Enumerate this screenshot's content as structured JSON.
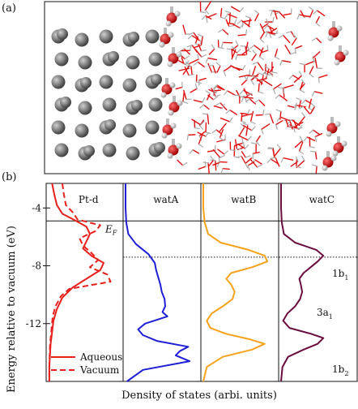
{
  "figure": {
    "panel_a_label": "(a)",
    "panel_b_label": "(b)",
    "ylabel": "Energy relative to vacuum (eV)",
    "xlabel": "Density of states (arbi. units)",
    "fermi_label": "E",
    "fermi_subscript": "F",
    "colors": {
      "aqueous": "#e8201c",
      "vacuum": "#e8201c",
      "watA": "#1f1fd6",
      "watB": "#f6a21a",
      "watC": "#6a0d3e",
      "pt": "#7a7a7a",
      "oxygen": "#e01010",
      "hydrogen": "#d8d8d8"
    }
  },
  "chart_data": {
    "type": "line",
    "ylabel": "Energy relative to vacuum (eV)",
    "xlabel": "Density of states (arbi. units)",
    "ylim": [
      -16,
      -2.3
    ],
    "yticks": [
      -4,
      -8,
      -12
    ],
    "ytick_labels": [
      "-4",
      "-8",
      "-12"
    ],
    "fermi_level": -4.9,
    "dotted_line": -7.4,
    "panels": [
      {
        "title": "Pt-d",
        "series": [
          {
            "name": "Aqueous",
            "style": "solid",
            "points": [
              [
                -2.3,
                0.05
              ],
              [
                -3.0,
                0.08
              ],
              [
                -3.8,
                0.12
              ],
              [
                -4.4,
                0.2
              ],
              [
                -4.9,
                0.4
              ],
              [
                -5.3,
                0.55
              ],
              [
                -5.8,
                0.6
              ],
              [
                -6.3,
                0.55
              ],
              [
                -6.8,
                0.5
              ],
              [
                -7.3,
                0.62
              ],
              [
                -7.8,
                0.8
              ],
              [
                -8.3,
                0.75
              ],
              [
                -8.9,
                0.55
              ],
              [
                -9.5,
                0.35
              ],
              [
                -10.2,
                0.2
              ],
              [
                -11.0,
                0.12
              ],
              [
                -11.8,
                0.07
              ],
              [
                -12.6,
                0.05
              ],
              [
                -13.4,
                0.03
              ],
              [
                -14.2,
                0.02
              ],
              [
                -15.0,
                0.01
              ],
              [
                -16.0,
                0.01
              ]
            ]
          },
          {
            "name": "Vacuum",
            "style": "dashed",
            "points": [
              [
                -2.3,
                0.2
              ],
              [
                -3.0,
                0.22
              ],
              [
                -3.8,
                0.25
              ],
              [
                -4.3,
                0.35
              ],
              [
                -4.8,
                0.42
              ],
              [
                -5.2,
                0.75
              ],
              [
                -5.6,
                0.68
              ],
              [
                -6.1,
                0.45
              ],
              [
                -6.6,
                0.5
              ],
              [
                -7.1,
                0.62
              ],
              [
                -7.6,
                0.72
              ],
              [
                -8.1,
                0.6
              ],
              [
                -8.6,
                0.85
              ],
              [
                -9.1,
                0.9
              ],
              [
                -9.6,
                0.3
              ],
              [
                -10.1,
                0.18
              ],
              [
                -10.8,
                0.1
              ],
              [
                -11.5,
                0.06
              ],
              [
                -12.5,
                0.04
              ],
              [
                -13.5,
                0.02
              ],
              [
                -15.0,
                0.01
              ],
              [
                -16.0,
                0.01
              ]
            ]
          }
        ]
      },
      {
        "title": "watA",
        "series": [
          {
            "name": "watA",
            "points": [
              [
                -2.3,
                0.0
              ],
              [
                -4.0,
                0.0
              ],
              [
                -5.0,
                0.01
              ],
              [
                -5.8,
                0.04
              ],
              [
                -6.5,
                0.15
              ],
              [
                -7.2,
                0.33
              ],
              [
                -7.8,
                0.42
              ],
              [
                -8.3,
                0.44
              ],
              [
                -8.8,
                0.47
              ],
              [
                -9.3,
                0.5
              ],
              [
                -9.8,
                0.52
              ],
              [
                -10.3,
                0.56
              ],
              [
                -10.8,
                0.57
              ],
              [
                -11.2,
                0.53
              ],
              [
                -11.5,
                0.6
              ],
              [
                -12.0,
                0.28
              ],
              [
                -12.4,
                0.18
              ],
              [
                -12.8,
                0.25
              ],
              [
                -13.2,
                0.45
              ],
              [
                -13.6,
                0.9
              ],
              [
                -13.9,
                0.78
              ],
              [
                -14.2,
                0.72
              ],
              [
                -14.6,
                0.92
              ],
              [
                -15.2,
                0.25
              ],
              [
                -16.0,
                0.02
              ]
            ]
          }
        ]
      },
      {
        "title": "watB",
        "series": [
          {
            "name": "watB",
            "points": [
              [
                -2.3,
                0.0
              ],
              [
                -4.0,
                0.0
              ],
              [
                -5.0,
                0.02
              ],
              [
                -5.8,
                0.07
              ],
              [
                -6.4,
                0.25
              ],
              [
                -6.9,
                0.65
              ],
              [
                -7.3,
                0.88
              ],
              [
                -7.7,
                0.92
              ],
              [
                -8.1,
                0.7
              ],
              [
                -8.5,
                0.4
              ],
              [
                -8.9,
                0.33
              ],
              [
                -9.3,
                0.4
              ],
              [
                -9.8,
                0.45
              ],
              [
                -10.3,
                0.42
              ],
              [
                -10.8,
                0.28
              ],
              [
                -11.3,
                0.12
              ],
              [
                -11.8,
                0.05
              ],
              [
                -12.3,
                0.1
              ],
              [
                -12.7,
                0.32
              ],
              [
                -13.1,
                0.68
              ],
              [
                -13.4,
                0.88
              ],
              [
                -13.8,
                0.7
              ],
              [
                -14.3,
                0.28
              ],
              [
                -15.0,
                0.05
              ],
              [
                -16.0,
                0.0
              ]
            ]
          }
        ]
      },
      {
        "title": "watC",
        "annotations": [
          "1b",
          "3a",
          "1b"
        ],
        "annotation_subscripts": [
          "1",
          "1",
          "2"
        ],
        "series": [
          {
            "name": "watC",
            "points": [
              [
                -2.3,
                0.0
              ],
              [
                -4.0,
                0.0
              ],
              [
                -5.0,
                0.01
              ],
              [
                -5.8,
                0.04
              ],
              [
                -6.4,
                0.2
              ],
              [
                -6.9,
                0.5
              ],
              [
                -7.3,
                0.6
              ],
              [
                -7.7,
                0.52
              ],
              [
                -8.1,
                0.42
              ],
              [
                -8.5,
                0.32
              ],
              [
                -8.9,
                0.26
              ],
              [
                -9.3,
                0.28
              ],
              [
                -9.8,
                0.3
              ],
              [
                -10.3,
                0.27
              ],
              [
                -10.8,
                0.2
              ],
              [
                -11.3,
                0.09
              ],
              [
                -11.8,
                0.03
              ],
              [
                -12.3,
                0.12
              ],
              [
                -12.7,
                0.42
              ],
              [
                -13.0,
                0.6
              ],
              [
                -13.4,
                0.52
              ],
              [
                -13.8,
                0.32
              ],
              [
                -14.3,
                0.1
              ],
              [
                -15.0,
                0.02
              ],
              [
                -16.0,
                0.0
              ]
            ]
          }
        ]
      }
    ],
    "legend": {
      "placement": "bottom-left",
      "entries": [
        "Aqueous",
        "Vacuum"
      ]
    }
  }
}
